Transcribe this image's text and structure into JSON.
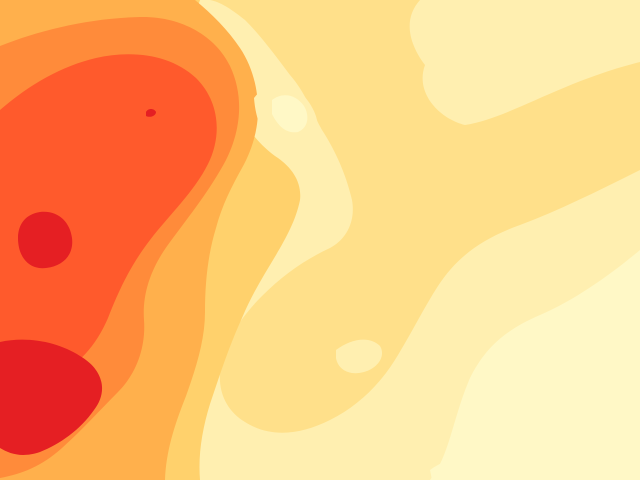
{
  "map": {
    "type": "filled-contour-heatmap",
    "palette": {
      "level_1": "#fff8c6",
      "level_2": "#ffefb0",
      "level_3": "#ffe08a",
      "level_4": "#ffd16c",
      "level_5": "#ffb04c",
      "level_6": "#ff8b3a",
      "level_7": "#ff5a2c",
      "level_8": "#e51f23"
    }
  }
}
